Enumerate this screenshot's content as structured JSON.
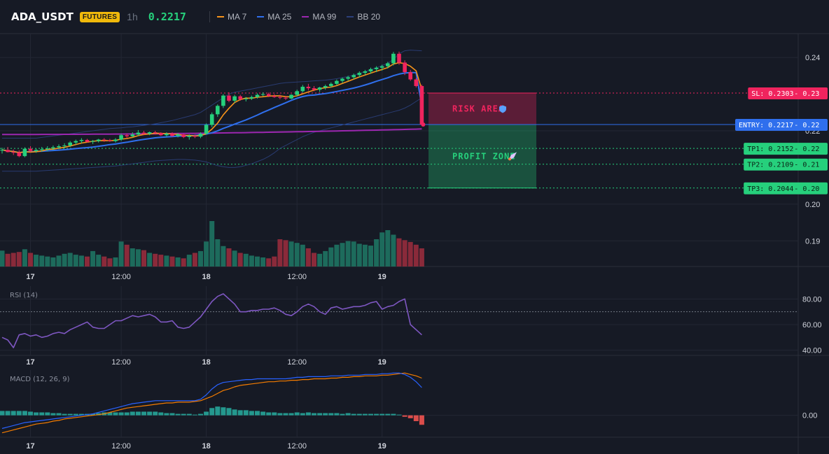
{
  "header": {
    "symbol": "ADA_USDT",
    "badge": "FUTURES",
    "timeframe": "1h",
    "price": "0.2217",
    "legend": [
      {
        "name": "MA 7",
        "color": "#f7931a"
      },
      {
        "name": "MA 25",
        "color": "#2f6fed"
      },
      {
        "name": "MA 99",
        "color": "#9c27b0"
      },
      {
        "name": "BB 20",
        "color": "#2b3f7a"
      }
    ]
  },
  "colors": {
    "bull": "#26d07c",
    "bear": "#f0245e",
    "vol_bull": "#1d6b5c",
    "vol_bear": "#8a2a3a",
    "grid": "#232734",
    "border": "#2a2e39",
    "entry": "#2f6fed",
    "sl": "#f0245e",
    "tp": "#26d07c",
    "rsi": "#7e57c2",
    "macd": "#2962ff",
    "signal": "#f57c00",
    "hist_pos": "#26a69a",
    "hist_neg": "#ef5350"
  },
  "chart_data": [
    {
      "type": "candlestick",
      "pane": "price",
      "y_ticks": [
        "0.24",
        "0.22",
        "0.20",
        "0.19"
      ],
      "y_tick_values": [
        0.24,
        0.22,
        0.2,
        0.19
      ],
      "ylim": [
        0.183,
        0.2465
      ],
      "x_ticks": [
        {
          "label": "17",
          "index": 5,
          "bold": true
        },
        {
          "label": "12:00",
          "index": 21,
          "bold": false
        },
        {
          "label": "18",
          "index": 36,
          "bold": true
        },
        {
          "label": "12:00",
          "index": 52,
          "bold": false
        },
        {
          "label": "19",
          "index": 67,
          "bold": true
        }
      ],
      "ohlc": [
        [
          0.2147,
          0.2154,
          0.2138,
          0.2148
        ],
        [
          0.2148,
          0.2156,
          0.2141,
          0.2142
        ],
        [
          0.2142,
          0.2149,
          0.2134,
          0.2141
        ],
        [
          0.2141,
          0.2147,
          0.2128,
          0.2131
        ],
        [
          0.2131,
          0.2155,
          0.2128,
          0.2151
        ],
        [
          0.2151,
          0.2158,
          0.2142,
          0.2145
        ],
        [
          0.2145,
          0.2152,
          0.214,
          0.2148
        ],
        [
          0.2148,
          0.2156,
          0.2143,
          0.215
        ],
        [
          0.215,
          0.2158,
          0.2144,
          0.2152
        ],
        [
          0.2152,
          0.216,
          0.2147,
          0.2155
        ],
        [
          0.2155,
          0.2163,
          0.215,
          0.2158
        ],
        [
          0.2158,
          0.2166,
          0.2152,
          0.216
        ],
        [
          0.216,
          0.2172,
          0.2156,
          0.2168
        ],
        [
          0.2168,
          0.2176,
          0.2162,
          0.2172
        ],
        [
          0.2172,
          0.218,
          0.2166,
          0.2175
        ],
        [
          0.2175,
          0.2178,
          0.2168,
          0.217
        ],
        [
          0.217,
          0.2175,
          0.2164,
          0.2172
        ],
        [
          0.2172,
          0.2178,
          0.2168,
          0.2176
        ],
        [
          0.2176,
          0.218,
          0.217,
          0.2174
        ],
        [
          0.2174,
          0.2178,
          0.217,
          0.2172
        ],
        [
          0.2172,
          0.218,
          0.2168,
          0.2176
        ],
        [
          0.2176,
          0.2192,
          0.2172,
          0.2188
        ],
        [
          0.2188,
          0.2192,
          0.218,
          0.2185
        ],
        [
          0.2185,
          0.2196,
          0.2182,
          0.219
        ],
        [
          0.219,
          0.2202,
          0.2186,
          0.2195
        ],
        [
          0.2195,
          0.22,
          0.2188,
          0.2192
        ],
        [
          0.2192,
          0.2198,
          0.2188,
          0.2196
        ],
        [
          0.2196,
          0.22,
          0.219,
          0.2194
        ],
        [
          0.2194,
          0.2196,
          0.2186,
          0.2188
        ],
        [
          0.2188,
          0.2196,
          0.2184,
          0.2192
        ],
        [
          0.2192,
          0.2196,
          0.2184,
          0.2186
        ],
        [
          0.2186,
          0.2194,
          0.2182,
          0.219
        ],
        [
          0.219,
          0.2192,
          0.218,
          0.2183
        ],
        [
          0.2183,
          0.219,
          0.2176,
          0.2186
        ],
        [
          0.2186,
          0.219,
          0.218,
          0.2184
        ],
        [
          0.2184,
          0.2196,
          0.218,
          0.2192
        ],
        [
          0.2192,
          0.222,
          0.219,
          0.2216
        ],
        [
          0.2216,
          0.225,
          0.221,
          0.2245
        ],
        [
          0.2245,
          0.2272,
          0.2238,
          0.2268
        ],
        [
          0.2268,
          0.23,
          0.2262,
          0.2296
        ],
        [
          0.2296,
          0.2305,
          0.2278,
          0.2282
        ],
        [
          0.2282,
          0.2298,
          0.2276,
          0.2294
        ],
        [
          0.2294,
          0.2298,
          0.2282,
          0.2286
        ],
        [
          0.2286,
          0.2292,
          0.228,
          0.2288
        ],
        [
          0.2288,
          0.2296,
          0.2284,
          0.2292
        ],
        [
          0.2292,
          0.2302,
          0.2288,
          0.2298
        ],
        [
          0.2298,
          0.2305,
          0.2294,
          0.23
        ],
        [
          0.23,
          0.2304,
          0.2292,
          0.2295
        ],
        [
          0.2295,
          0.23,
          0.229,
          0.2292
        ],
        [
          0.2292,
          0.2298,
          0.2286,
          0.229
        ],
        [
          0.229,
          0.2295,
          0.2284,
          0.2288
        ],
        [
          0.2288,
          0.23,
          0.2286,
          0.2298
        ],
        [
          0.2298,
          0.2312,
          0.2294,
          0.2308
        ],
        [
          0.2308,
          0.2325,
          0.2304,
          0.232
        ],
        [
          0.232,
          0.2328,
          0.231,
          0.2316
        ],
        [
          0.2316,
          0.2322,
          0.2308,
          0.2312
        ],
        [
          0.2312,
          0.232,
          0.2306,
          0.2318
        ],
        [
          0.2318,
          0.2326,
          0.2312,
          0.2322
        ],
        [
          0.2322,
          0.2332,
          0.2318,
          0.2328
        ],
        [
          0.2328,
          0.234,
          0.2324,
          0.2336
        ],
        [
          0.2336,
          0.2345,
          0.233,
          0.2342
        ],
        [
          0.2342,
          0.235,
          0.2336,
          0.2346
        ],
        [
          0.2346,
          0.2356,
          0.234,
          0.2352
        ],
        [
          0.2352,
          0.2362,
          0.2346,
          0.2358
        ],
        [
          0.2358,
          0.2366,
          0.2352,
          0.2362
        ],
        [
          0.2362,
          0.2372,
          0.2356,
          0.2368
        ],
        [
          0.2368,
          0.2376,
          0.236,
          0.2372
        ],
        [
          0.2372,
          0.238,
          0.2364,
          0.2376
        ],
        [
          0.2376,
          0.2388,
          0.237,
          0.2384
        ],
        [
          0.2384,
          0.2415,
          0.2378,
          0.241
        ],
        [
          0.241,
          0.2416,
          0.238,
          0.2386
        ],
        [
          0.2386,
          0.2392,
          0.2352,
          0.236
        ],
        [
          0.236,
          0.2366,
          0.2336,
          0.234
        ],
        [
          0.234,
          0.2344,
          0.2318,
          0.2322
        ],
        [
          0.2322,
          0.2326,
          0.2214,
          0.2217
        ]
      ],
      "volume": [
        35,
        28,
        30,
        32,
        38,
        30,
        26,
        24,
        22,
        20,
        24,
        28,
        30,
        26,
        24,
        22,
        34,
        26,
        22,
        18,
        20,
        55,
        48,
        40,
        38,
        36,
        30,
        28,
        26,
        24,
        22,
        20,
        18,
        26,
        30,
        34,
        55,
        100,
        60,
        45,
        40,
        35,
        30,
        28,
        24,
        22,
        20,
        18,
        22,
        60,
        58,
        55,
        52,
        48,
        40,
        30,
        28,
        34,
        42,
        48,
        52,
        56,
        55,
        50,
        48,
        46,
        60,
        75,
        80,
        70,
        62,
        58,
        54,
        48,
        40
      ],
      "bb_upper": [
        0.218,
        0.218,
        0.218,
        0.218,
        0.218,
        0.218,
        0.218,
        0.2182,
        0.2184,
        0.2186,
        0.2188,
        0.219,
        0.2192,
        0.2194,
        0.2196,
        0.2198,
        0.22,
        0.2202,
        0.2204,
        0.2206,
        0.2207,
        0.2208,
        0.221,
        0.2211,
        0.2213,
        0.2215,
        0.2217,
        0.2219,
        0.2222,
        0.2225,
        0.2228,
        0.2232,
        0.2236,
        0.224,
        0.2244,
        0.225,
        0.226,
        0.227,
        0.228,
        0.229,
        0.23,
        0.2305,
        0.2308,
        0.2311,
        0.2314,
        0.2317,
        0.232,
        0.2323,
        0.2326,
        0.2329,
        0.2331,
        0.2332,
        0.2333,
        0.2334,
        0.2335,
        0.2336,
        0.2337,
        0.2338,
        0.234,
        0.2342,
        0.2345,
        0.2348,
        0.2352,
        0.2356,
        0.2361,
        0.2366,
        0.2372,
        0.2378,
        0.2384,
        0.2395,
        0.241,
        0.2418,
        0.242,
        0.2419,
        0.2418
      ],
      "bb_lower": [
        0.209,
        0.209,
        0.209,
        0.209,
        0.209,
        0.209,
        0.209,
        0.2091,
        0.2092,
        0.2093,
        0.2094,
        0.2095,
        0.2096,
        0.2097,
        0.2098,
        0.2099,
        0.21,
        0.2101,
        0.2102,
        0.2103,
        0.2104,
        0.2106,
        0.2108,
        0.211,
        0.2112,
        0.2114,
        0.2116,
        0.2118,
        0.2119,
        0.212,
        0.2121,
        0.2122,
        0.2122,
        0.2121,
        0.212,
        0.2118,
        0.2115,
        0.211,
        0.2105,
        0.2102,
        0.21,
        0.21,
        0.2102,
        0.2106,
        0.211,
        0.2116,
        0.2122,
        0.213,
        0.214,
        0.2152,
        0.216,
        0.2168,
        0.2176,
        0.2184,
        0.219,
        0.2196,
        0.22,
        0.2204,
        0.2208,
        0.2212,
        0.2216,
        0.222,
        0.2224,
        0.2228,
        0.2232,
        0.2236,
        0.224,
        0.2244,
        0.2248,
        0.2252,
        0.2256,
        0.2262,
        0.227,
        0.228,
        0.229
      ],
      "ma7_end": 0.2312,
      "ma25_end": 0.2268,
      "ma99_start": 0.219,
      "ma99_end": 0.2205,
      "levels": [
        {
          "name": "SL",
          "label": "SL: 0.2303",
          "tick": "0.23",
          "value": 0.2303,
          "type": "sl"
        },
        {
          "name": "ENTRY",
          "label": "ENTRY: 0.2217",
          "tick": "0.22",
          "value": 0.2217,
          "type": "entry"
        },
        {
          "name": "TP1",
          "label": "TP1: 0.2152",
          "tick": "0.22",
          "value": 0.2152,
          "type": "tp"
        },
        {
          "name": "TP2",
          "label": "TP2: 0.2109",
          "tick": "0.21",
          "value": 0.2109,
          "type": "tp"
        },
        {
          "name": "TP3",
          "label": "TP3: 0.2044",
          "tick": "0.20",
          "value": 0.2044,
          "type": "tp"
        }
      ],
      "zones": [
        {
          "label": "RISK AREA",
          "top": 0.2303,
          "bottom": 0.2217,
          "color": "#f0245e"
        },
        {
          "label": "PROFIT ZONE",
          "top": 0.2217,
          "bottom": 0.2044,
          "color": "#26d07c"
        }
      ]
    },
    {
      "type": "line",
      "pane": "rsi",
      "title": "RSI (14)",
      "y_ticks": [
        "80.00",
        "60.00",
        "40.00"
      ],
      "y_tick_values": [
        80,
        60,
        40
      ],
      "ylim": [
        36,
        90
      ],
      "overbought": 70,
      "values": [
        50,
        48,
        42,
        52,
        53,
        51,
        52,
        50,
        51,
        53,
        54,
        53,
        56,
        58,
        60,
        62,
        58,
        57,
        57,
        60,
        63,
        63,
        65,
        67,
        66,
        67,
        68,
        66,
        62,
        62,
        63,
        58,
        57,
        58,
        62,
        66,
        72,
        78,
        82,
        84,
        80,
        76,
        70,
        70,
        71,
        71,
        72,
        72,
        73,
        71,
        68,
        67,
        70,
        74,
        76,
        74,
        70,
        68,
        73,
        74,
        72,
        73,
        74,
        74,
        75,
        77,
        78,
        72,
        74,
        75,
        78,
        80,
        60,
        56,
        52
      ]
    },
    {
      "type": "line",
      "pane": "macd",
      "title": "MACD (12, 26, 9)",
      "y_ticks": [
        "0.00"
      ],
      "y_tick_values": [
        0
      ],
      "ylim": [
        -0.003,
        0.0062
      ],
      "macd": [
        -0.0018,
        -0.0016,
        -0.0014,
        -0.0012,
        -0.001,
        -0.0009,
        -0.0008,
        -0.0007,
        -0.0006,
        -0.0005,
        -0.0004,
        -0.0003,
        -0.0002,
        -0.0001,
        0.0,
        0.0001,
        0.0002,
        0.0004,
        0.0006,
        0.0008,
        0.001,
        0.0012,
        0.0014,
        0.0016,
        0.0017,
        0.0018,
        0.0019,
        0.002,
        0.002,
        0.002,
        0.002,
        0.002,
        0.002,
        0.002,
        0.002,
        0.0022,
        0.0028,
        0.0036,
        0.0042,
        0.0045,
        0.0046,
        0.0047,
        0.0048,
        0.0049,
        0.0049,
        0.005,
        0.005,
        0.005,
        0.005,
        0.005,
        0.005,
        0.0051,
        0.0052,
        0.0052,
        0.0053,
        0.0053,
        0.0053,
        0.0053,
        0.0054,
        0.0054,
        0.0054,
        0.0055,
        0.0055,
        0.0055,
        0.0056,
        0.0056,
        0.0056,
        0.0057,
        0.0057,
        0.0058,
        0.0058,
        0.0056,
        0.0052,
        0.0046,
        0.0038
      ],
      "signal": [
        -0.0024,
        -0.0022,
        -0.002,
        -0.0018,
        -0.0016,
        -0.0014,
        -0.0012,
        -0.0011,
        -0.001,
        -0.0008,
        -0.0007,
        -0.0005,
        -0.0004,
        -0.0003,
        -0.0002,
        -0.0001,
        0.0,
        0.0001,
        0.0002,
        0.0004,
        0.0006,
        0.0008,
        0.001,
        0.0011,
        0.0012,
        0.0013,
        0.0014,
        0.0015,
        0.0016,
        0.0017,
        0.0017,
        0.0018,
        0.0018,
        0.0018,
        0.0019,
        0.002,
        0.0023,
        0.0026,
        0.003,
        0.0034,
        0.0036,
        0.0039,
        0.0041,
        0.0042,
        0.0043,
        0.0044,
        0.0045,
        0.0046,
        0.0046,
        0.0047,
        0.0047,
        0.0048,
        0.0048,
        0.0049,
        0.0049,
        0.005,
        0.005,
        0.005,
        0.0051,
        0.0051,
        0.0052,
        0.0052,
        0.0053,
        0.0053,
        0.0054,
        0.0054,
        0.0054,
        0.0055,
        0.0055,
        0.0056,
        0.0057,
        0.0058,
        0.0056,
        0.0054,
        0.0051
      ],
      "hist": [
        0.0006,
        0.0006,
        0.0006,
        0.0006,
        0.0006,
        0.0005,
        0.0004,
        0.0004,
        0.0004,
        0.0003,
        0.0003,
        0.0002,
        0.0002,
        0.0002,
        0.0002,
        0.0002,
        0.0002,
        0.0003,
        0.0004,
        0.0004,
        0.0004,
        0.0004,
        0.0004,
        0.0005,
        0.0005,
        0.0005,
        0.0005,
        0.0005,
        0.0004,
        0.0003,
        0.0003,
        0.0002,
        0.0002,
        0.0002,
        0.0001,
        0.0002,
        0.0005,
        0.001,
        0.0012,
        0.0011,
        0.001,
        0.0008,
        0.0007,
        0.0007,
        0.0006,
        0.0006,
        0.0005,
        0.0004,
        0.0004,
        0.0003,
        0.0003,
        0.0003,
        0.0004,
        0.0003,
        0.0004,
        0.0003,
        0.0003,
        0.0003,
        0.0003,
        0.0003,
        0.0002,
        0.0003,
        0.0002,
        0.0002,
        0.0002,
        0.0002,
        0.0002,
        0.0002,
        0.0002,
        0.0002,
        0.0001,
        -0.0002,
        -0.0004,
        -0.0008,
        -0.0013
      ]
    }
  ]
}
